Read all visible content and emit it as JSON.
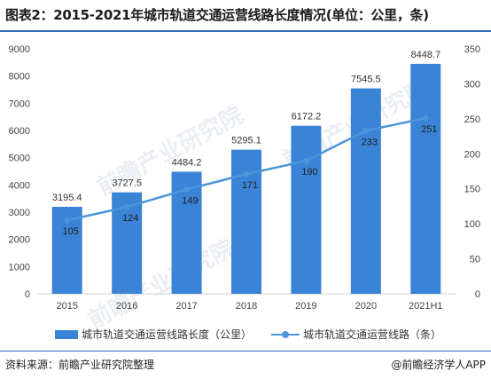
{
  "title": "图表2：2015-2021年城市轨道交通运营线路长度情况(单位：公里，条)",
  "source": "资料来源：前瞻产业研究院整理",
  "brand": "@前瞻经济学人APP",
  "watermark": "前瞻产业研究院",
  "colors": {
    "bar": "#3a83d6",
    "line": "#4c95d8",
    "rule": "#2e6fb8"
  },
  "chart_data": {
    "type": "bar",
    "categories": [
      "2015",
      "2016",
      "2017",
      "2018",
      "2019",
      "2020",
      "2021H1"
    ],
    "series": [
      {
        "name": "城市轨道交通运营线路长度（公里）",
        "type": "bar",
        "axis": "left",
        "values": [
          3195.4,
          3727.5,
          4484.2,
          5295.1,
          6172.2,
          7545.5,
          8448.7
        ],
        "labels": [
          "3195.4",
          "3727.5",
          "4484.2",
          "5295.1",
          "6172.2",
          "7545.5",
          "8448.7"
        ]
      },
      {
        "name": "城市轨道交通运营线路（条）",
        "type": "line",
        "axis": "right",
        "values": [
          105,
          124,
          149,
          171,
          190,
          233,
          251
        ],
        "labels": [
          "105",
          "124",
          "149",
          "171",
          "190",
          "233",
          "251"
        ]
      }
    ],
    "y_left": {
      "min": 0,
      "max": 9000,
      "ticks": [
        0,
        1000,
        2000,
        3000,
        4000,
        5000,
        6000,
        7000,
        8000,
        9000
      ]
    },
    "y_right": {
      "min": 0,
      "max": 350,
      "ticks": [
        0,
        50,
        100,
        150,
        200,
        250,
        300,
        350
      ]
    },
    "grid": false,
    "legend": "bottom"
  }
}
